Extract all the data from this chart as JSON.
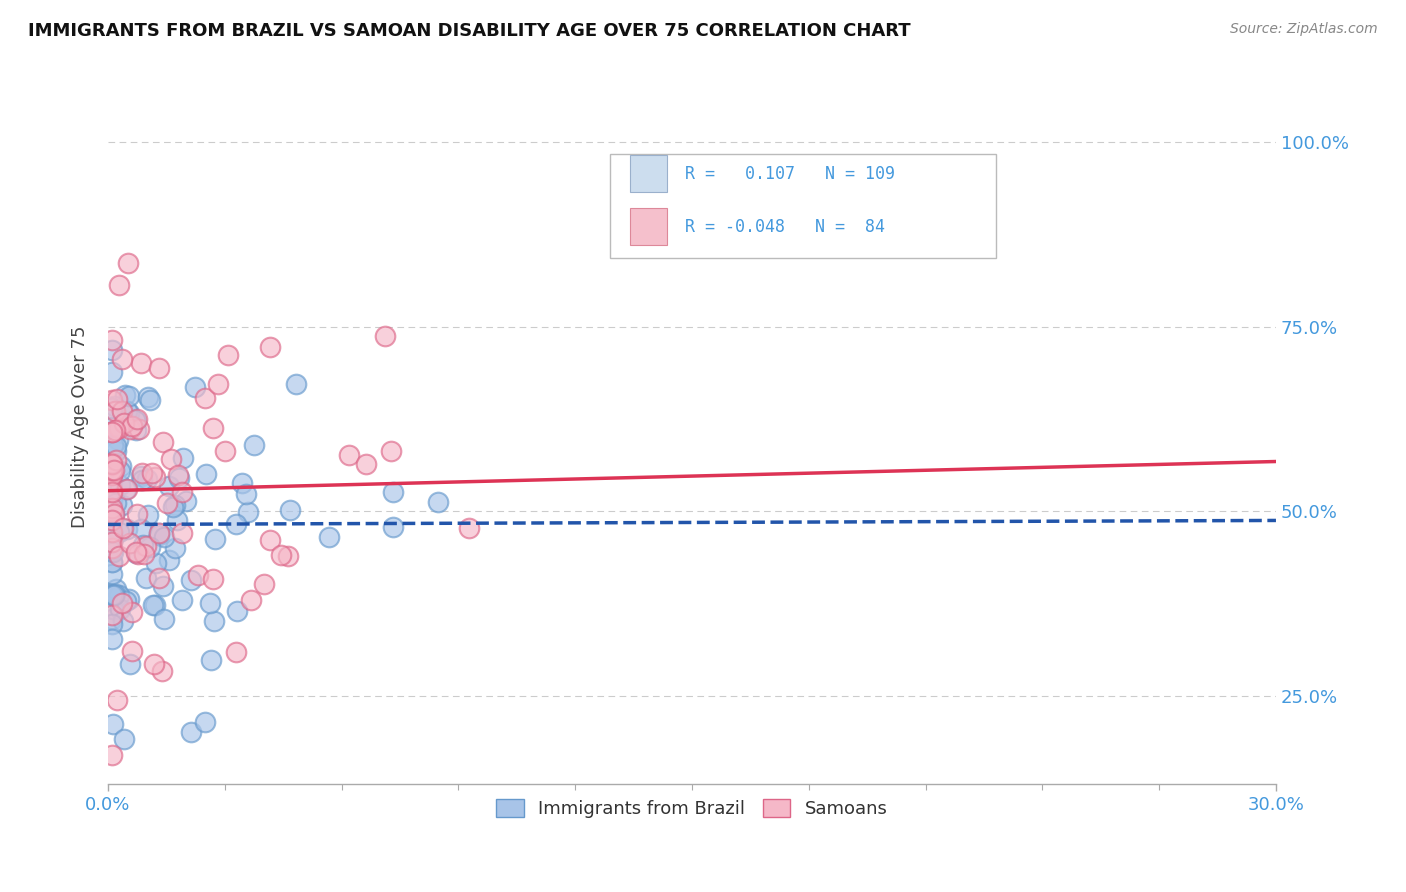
{
  "title": "IMMIGRANTS FROM BRAZIL VS SAMOAN DISABILITY AGE OVER 75 CORRELATION CHART",
  "source": "Source: ZipAtlas.com",
  "ylabel": "Disability Age Over 75",
  "xlim": [
    0.0,
    0.3
  ],
  "ylim": [
    0.13,
    1.1
  ],
  "brazil_color": "#a8c4e8",
  "brazil_edge_color": "#6699cc",
  "samoan_color": "#f5b8c8",
  "samoan_edge_color": "#dd6688",
  "brazil_line_color": "#2255aa",
  "samoan_line_color": "#dd3355",
  "brazil_R": 0.107,
  "brazil_N": 109,
  "samoan_R": -0.048,
  "samoan_N": 84,
  "legend_box_color": "#ccddee",
  "legend_pink_box_color": "#f5c0cc",
  "grid_color": "#cccccc",
  "spine_color": "#aaaaaa",
  "tick_label_color": "#4499dd",
  "title_color": "#111111",
  "source_color": "#888888",
  "ylabel_color": "#444444"
}
